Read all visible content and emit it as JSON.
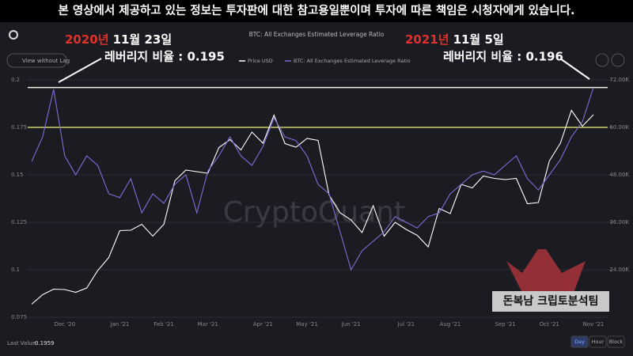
{
  "banner": "본 영상에서 제공하고 있는 정보는 투자판에 대한 참고용일뿐이며 투자에 따른 책임은 시청자에게 있습니다.",
  "ui": {
    "button": "View without Lag",
    "watermark": "CryptoQuant",
    "channel": "돈복남 크립토분석팀",
    "last_value_label": "Last Value:",
    "last_value": "0.1959",
    "intervals": [
      "Day",
      "Hour",
      "Block"
    ]
  },
  "annotations": [
    {
      "year": "2020년",
      "date": "11월 23일",
      "text": "레버리지 비율 : 0.195"
    },
    {
      "year": "2021년",
      "date": "11월 5일",
      "text": "레버리지 비율 : 0.196"
    }
  ],
  "chart_data": {
    "type": "line",
    "title": "BTC: All Exchanges Estimated Leverage Ratio",
    "categories": [
      null,
      null,
      null,
      "Dec '20",
      null,
      null,
      null,
      null,
      "Jan '21",
      null,
      null,
      null,
      "Feb '21",
      null,
      null,
      null,
      "Mar '21",
      null,
      null,
      null,
      null,
      "Apr '21",
      null,
      null,
      null,
      "May '21",
      null,
      null,
      null,
      "Jun '21",
      null,
      null,
      null,
      null,
      "Jul '21",
      null,
      null,
      null,
      "Aug '21",
      null,
      null,
      null,
      null,
      "Sep '21",
      null,
      null,
      null,
      "Oct '21",
      null,
      null,
      null,
      "Nov '21"
    ],
    "series": [
      {
        "name": "Price USD",
        "color": "#ffffff",
        "axis": "y2",
        "values": [
          15300,
          17700,
          19100,
          19000,
          18300,
          19400,
          23800,
          27100,
          33900,
          34000,
          35500,
          32500,
          35500,
          46500,
          49200,
          48800,
          48400,
          54900,
          56900,
          54300,
          58800,
          56000,
          63100,
          55900,
          55000,
          57200,
          56700,
          42900,
          38400,
          36600,
          33400,
          40200,
          32500,
          36000,
          34200,
          32700,
          29800,
          39500,
          38200,
          45600,
          44700,
          47700,
          47100,
          46800,
          47100,
          40700,
          41000,
          51500,
          56000,
          64300,
          60300,
          63200
        ]
      },
      {
        "name": "BTC: All Exchanges Estimated Leverage Ratio",
        "color": "#7b6fd6",
        "values": [
          0.157,
          0.17,
          0.195,
          0.16,
          0.15,
          0.16,
          0.155,
          0.14,
          0.138,
          0.148,
          0.13,
          0.14,
          0.135,
          0.145,
          0.15,
          0.13,
          0.152,
          0.16,
          0.17,
          0.16,
          0.155,
          0.165,
          0.18,
          0.17,
          0.168,
          0.16,
          0.145,
          0.14,
          0.12,
          0.1,
          0.11,
          0.115,
          0.12,
          0.128,
          0.125,
          0.122,
          0.128,
          0.13,
          0.14,
          0.145,
          0.15,
          0.152,
          0.15,
          0.155,
          0.16,
          0.148,
          0.142,
          0.15,
          0.158,
          0.17,
          0.178,
          0.196
        ]
      }
    ],
    "ylim": [
      0.075,
      0.2
    ],
    "yticks": [
      0.075,
      0.1,
      0.125,
      0.15,
      0.175,
      0.2
    ],
    "y2lim": [
      12000,
      72000
    ],
    "y2ticks": [
      {
        "value": 24000,
        "label": "24.00K"
      },
      {
        "value": 36000,
        "label": "36.00K"
      },
      {
        "value": 48000,
        "label": "48.00K"
      },
      {
        "value": 60000,
        "label": "60.00K"
      },
      {
        "value": 72000,
        "label": "72.00K"
      }
    ],
    "hlines": [
      {
        "value": 0.196,
        "color": "#f2f2e6"
      },
      {
        "value": 0.175,
        "color": "#cfcf6a"
      }
    ],
    "grid": true
  }
}
